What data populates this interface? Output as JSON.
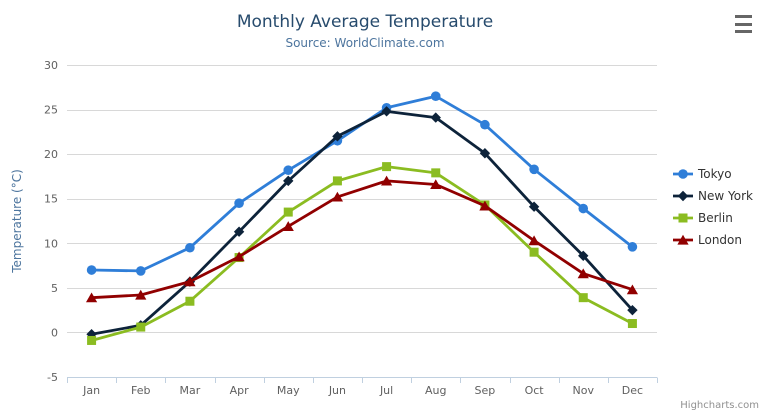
{
  "chart": {
    "title": "Monthly Average Temperature",
    "subtitle": "Source: WorldClimate.com",
    "credit": "Highcharts.com"
  },
  "chart_data": {
    "type": "line",
    "title": "Monthly Average Temperature",
    "subtitle": "Source: WorldClimate.com",
    "categories": [
      "Jan",
      "Feb",
      "Mar",
      "Apr",
      "May",
      "Jun",
      "Jul",
      "Aug",
      "Sep",
      "Oct",
      "Nov",
      "Dec"
    ],
    "series": [
      {
        "name": "Tokyo",
        "color": "#2f7ed8",
        "marker": "circle",
        "values": [
          7.0,
          6.9,
          9.5,
          14.5,
          18.2,
          21.5,
          25.2,
          26.5,
          23.3,
          18.3,
          13.9,
          9.6
        ]
      },
      {
        "name": "New York",
        "color": "#0d233a",
        "marker": "diamond",
        "values": [
          -0.2,
          0.8,
          5.7,
          11.3,
          17.0,
          22.0,
          24.8,
          24.1,
          20.1,
          14.1,
          8.6,
          2.5
        ]
      },
      {
        "name": "Berlin",
        "color": "#8bbc21",
        "marker": "square",
        "values": [
          -0.9,
          0.6,
          3.5,
          8.4,
          13.5,
          17.0,
          18.6,
          17.9,
          14.3,
          9.0,
          3.9,
          1.0
        ]
      },
      {
        "name": "London",
        "color": "#910000",
        "marker": "triangle",
        "values": [
          3.9,
          4.2,
          5.7,
          8.5,
          11.9,
          15.2,
          17.0,
          16.6,
          14.2,
          10.3,
          6.6,
          4.8
        ]
      }
    ],
    "xlabel": "",
    "ylabel": "Temperature (°C)",
    "ylim": [
      -5,
      30
    ],
    "yticks": [
      -5,
      0,
      5,
      10,
      15,
      20,
      25,
      30
    ],
    "grid": true,
    "legend_position": "right"
  },
  "colors": {
    "title": "#274b6d",
    "subtitle": "#4d759e",
    "axis_label": "#606060",
    "axis_title": "#4d759e",
    "gridline": "#d8d8d8",
    "axis_line": "#c0d0e0",
    "legend_text": "#333333",
    "credit": "#909090",
    "background": "#ffffff"
  }
}
